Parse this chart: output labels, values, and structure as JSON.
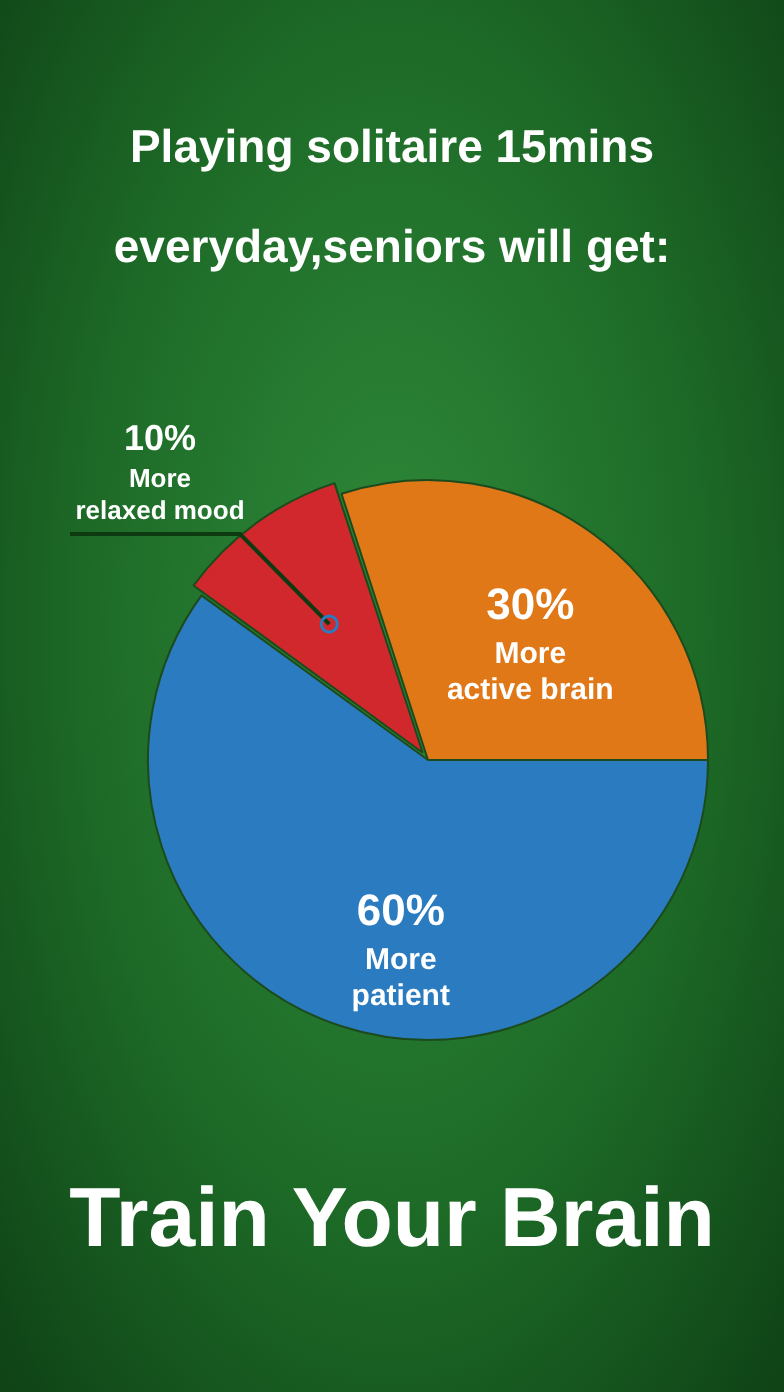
{
  "chart_data": {
    "type": "pie",
    "title": "Playing solitaire 15mins everyday,seniors will get:",
    "categories": [
      "More active brain",
      "More patient",
      "More relaxed mood"
    ],
    "values": [
      30,
      60,
      10
    ],
    "colors": [
      "#e07818",
      "#2a7bbf",
      "#d0282c"
    ],
    "value_labels": [
      "30%",
      "60%",
      "10%"
    ],
    "legend": false,
    "annotations": [
      "Train Your Brain"
    ]
  }
}
